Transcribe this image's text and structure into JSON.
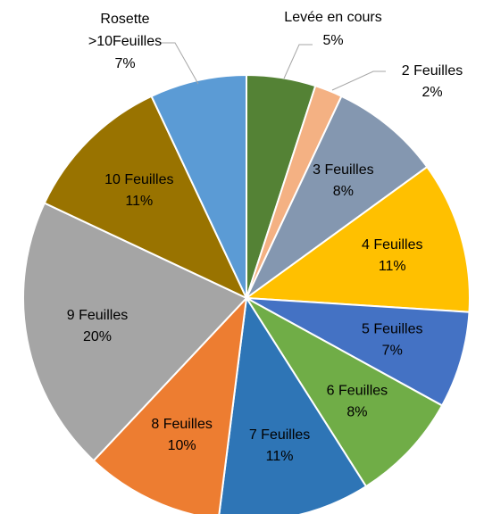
{
  "chart_data": {
    "type": "pie",
    "categories": [
      "Levée en cours",
      "2 Feuilles",
      "3 Feuilles",
      "4 Feuilles",
      "5 Feuilles",
      "6 Feuilles",
      "7 Feuilles",
      "8 Feuilles",
      "9 Feuilles",
      "10 Feuilles",
      "Rosette >10Feuilles"
    ],
    "values": [
      5,
      2,
      8,
      11,
      7,
      8,
      11,
      10,
      20,
      11,
      7
    ],
    "value_labels": [
      "5%",
      "2%",
      "8%",
      "11%",
      "7%",
      "8%",
      "11%",
      "10%",
      "20%",
      "11%",
      "7%"
    ],
    "colors": [
      "#548235",
      "#f4b183",
      "#8497b0",
      "#ffc000",
      "#4472c4",
      "#70ad47",
      "#2e75b6",
      "#ed7d31",
      "#a5a5a5",
      "#997300",
      "#5b9bd5"
    ]
  }
}
